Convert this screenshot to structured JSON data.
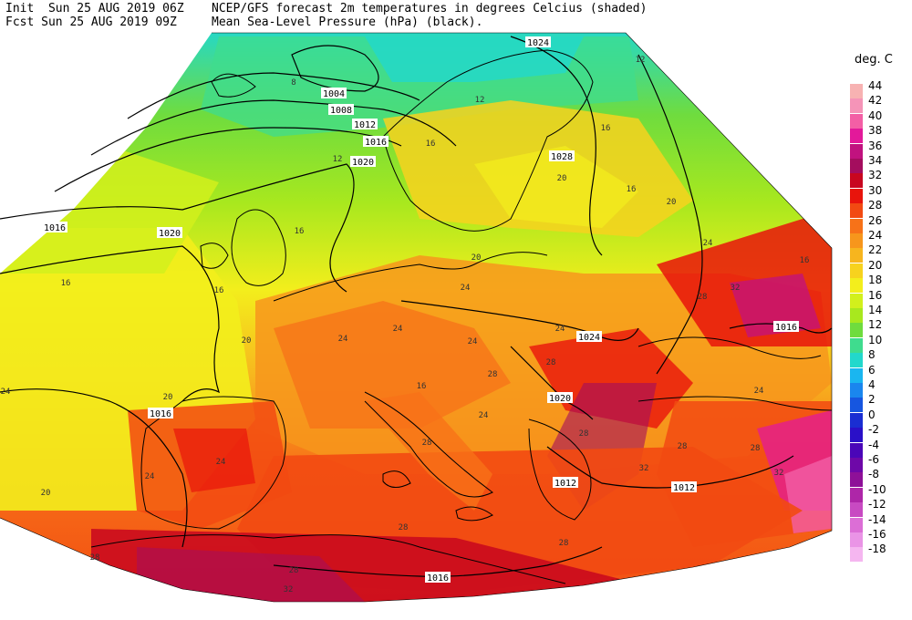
{
  "header": {
    "line1_left": "Init  Sun 25 AUG 2019 06Z",
    "line1_right": "NCEP/GFS forecast 2m temperatures in degrees Celcius (shaded)",
    "line2_left": "Fcst Sun 25 AUG 2019 09Z",
    "line2_right": "Mean Sea-Level Pressure (hPa) (black)."
  },
  "legend": {
    "title": "deg. C",
    "entries": [
      {
        "label": "44",
        "color": "#f7b2b2"
      },
      {
        "label": "42",
        "color": "#f594b8"
      },
      {
        "label": "40",
        "color": "#f35fa5"
      },
      {
        "label": "38",
        "color": "#e3199a"
      },
      {
        "label": "36",
        "color": "#c1127f"
      },
      {
        "label": "34",
        "color": "#a40d5e"
      },
      {
        "label": "32",
        "color": "#c8061f"
      },
      {
        "label": "30",
        "color": "#e8140c"
      },
      {
        "label": "28",
        "color": "#f24a12"
      },
      {
        "label": "26",
        "color": "#f77218"
      },
      {
        "label": "24",
        "color": "#f7961c"
      },
      {
        "label": "22",
        "color": "#f7b51e"
      },
      {
        "label": "20",
        "color": "#f7d21e"
      },
      {
        "label": "18",
        "color": "#f3ee1c"
      },
      {
        "label": "16",
        "color": "#d2f01c"
      },
      {
        "label": "14",
        "color": "#a8e81e"
      },
      {
        "label": "12",
        "color": "#6fdc3e"
      },
      {
        "label": "10",
        "color": "#3fdc8e"
      },
      {
        "label": "8",
        "color": "#22d8cc"
      },
      {
        "label": "6",
        "color": "#1ab6f0"
      },
      {
        "label": "4",
        "color": "#1a86ee"
      },
      {
        "label": "2",
        "color": "#1656e0"
      },
      {
        "label": "0",
        "color": "#1a2ed2"
      },
      {
        "label": "-2",
        "color": "#2a10c8"
      },
      {
        "label": "-4",
        "color": "#4a06b8"
      },
      {
        "label": "-6",
        "color": "#6e08a8"
      },
      {
        "label": "-8",
        "color": "#8e1098"
      },
      {
        "label": "-10",
        "color": "#ae26a8"
      },
      {
        "label": "-12",
        "color": "#c84ac2"
      },
      {
        "label": "-14",
        "color": "#dc6ed6"
      },
      {
        "label": "-16",
        "color": "#ea94e6"
      },
      {
        "label": "-18",
        "color": "#f5b6f0"
      }
    ]
  },
  "isobars": {
    "labels": [
      "1004",
      "1008",
      "1012",
      "1016",
      "1020",
      "1024",
      "1028",
      "1016",
      "1020",
      "1016",
      "1016",
      "1024",
      "1020",
      "1012",
      "1012",
      "1016",
      "1016",
      "1024"
    ]
  },
  "temp_labels": [
    "8",
    "12",
    "16",
    "16",
    "16",
    "12",
    "16",
    "16",
    "16",
    "12",
    "20",
    "20",
    "20",
    "24",
    "24",
    "24",
    "24",
    "24",
    "24",
    "24",
    "24",
    "28",
    "28",
    "28",
    "28",
    "28",
    "28",
    "28",
    "32",
    "32",
    "32",
    "20",
    "20",
    "24",
    "20",
    "16",
    "16",
    "28",
    "28",
    "28",
    "32",
    "28",
    "24",
    "24"
  ]
}
